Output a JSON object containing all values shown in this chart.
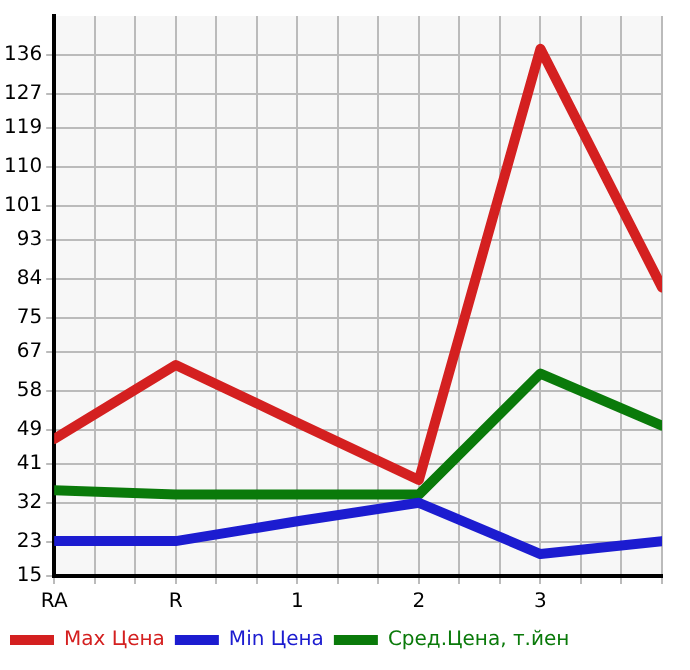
{
  "chart_data": {
    "type": "line",
    "categories": [
      "RA",
      "R",
      "1",
      "2",
      "3",
      null
    ],
    "ylim": [
      15,
      145
    ],
    "yticks": [
      15,
      23,
      32,
      41,
      49,
      58,
      67,
      75,
      84,
      93,
      101,
      110,
      119,
      127,
      136
    ],
    "series": [
      {
        "name": "Max Цена",
        "color": "#d42020",
        "values": [
          46.8,
          64,
          50.6,
          37.3,
          137.4,
          82
        ]
      },
      {
        "name": "Min Цена",
        "color": "#1c1cd0",
        "values": [
          23.1,
          23.1,
          27.7,
          32,
          20.1,
          23.1
        ]
      },
      {
        "name": "Сред.Цена, т.йен",
        "color": "#0a7a0a",
        "values": [
          34.9,
          33.9,
          33.9,
          33.9,
          62,
          49.9
        ]
      }
    ],
    "grid": true,
    "legend": "bottom",
    "marker": "none",
    "line_style": "solid"
  }
}
